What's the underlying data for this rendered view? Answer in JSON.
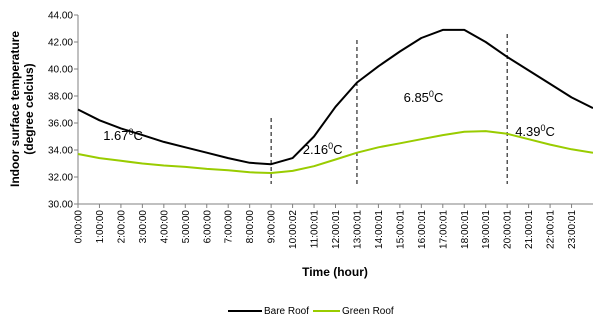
{
  "chart_data": {
    "type": "line",
    "xlabel": "Time (hour)",
    "ylabel_lines": [
      "Indoor surface temperature",
      "(degree celcius)"
    ],
    "ylim": [
      30.0,
      44.0
    ],
    "y_ticks": [
      "30.00",
      "32.00",
      "34.00",
      "36.00",
      "38.00",
      "40.00",
      "42.00",
      "44.00"
    ],
    "x_range_hours": [
      0,
      24
    ],
    "x_ticks": [
      {
        "hour": 0,
        "label": "0:00:00"
      },
      {
        "hour": 1,
        "label": "1:00:00"
      },
      {
        "hour": 2,
        "label": "2:00:00"
      },
      {
        "hour": 3,
        "label": "3:00:00"
      },
      {
        "hour": 4,
        "label": "4:00:00"
      },
      {
        "hour": 5,
        "label": "5:00:00"
      },
      {
        "hour": 6,
        "label": "6:00:00"
      },
      {
        "hour": 7,
        "label": "7:00:00"
      },
      {
        "hour": 8,
        "label": "8:00:00"
      },
      {
        "hour": 9,
        "label": "9:00:00"
      },
      {
        "hour": 10,
        "label": "10:00:02"
      },
      {
        "hour": 11,
        "label": "11:00:01"
      },
      {
        "hour": 12,
        "label": "12:00:01"
      },
      {
        "hour": 13,
        "label": "13:00:01"
      },
      {
        "hour": 14,
        "label": "14:00:01"
      },
      {
        "hour": 15,
        "label": "15:00:01"
      },
      {
        "hour": 16,
        "label": "16:00:01"
      },
      {
        "hour": 17,
        "label": "17:00:01"
      },
      {
        "hour": 18,
        "label": "18:00:01"
      },
      {
        "hour": 19,
        "label": "19:00:01"
      },
      {
        "hour": 20,
        "label": "20:00:01"
      },
      {
        "hour": 21,
        "label": "21:00:01"
      },
      {
        "hour": 22,
        "label": "22:00:01"
      },
      {
        "hour": 23,
        "label": "23:00:01"
      }
    ],
    "x_hours": [
      0,
      1,
      2,
      3,
      4,
      5,
      6,
      7,
      8,
      9,
      10,
      11,
      12,
      13,
      14,
      15,
      16,
      17,
      18,
      19,
      20,
      21,
      22,
      23,
      24
    ],
    "series": [
      {
        "name": "Bare Roof",
        "color": "#000000",
        "values": [
          37.0,
          36.2,
          35.6,
          35.1,
          34.6,
          34.2,
          33.8,
          33.4,
          33.05,
          32.95,
          33.4,
          35.0,
          37.2,
          39.0,
          40.2,
          41.3,
          42.3,
          42.9,
          42.9,
          42.0,
          40.9,
          39.9,
          38.9,
          37.9,
          37.1
        ]
      },
      {
        "name": "Green Roof",
        "color": "#99cc00",
        "values": [
          33.7,
          33.4,
          33.2,
          33.0,
          32.85,
          32.75,
          32.6,
          32.5,
          32.35,
          32.3,
          32.45,
          32.8,
          33.3,
          33.8,
          34.2,
          34.5,
          34.8,
          35.1,
          35.35,
          35.4,
          35.2,
          34.8,
          34.4,
          34.05,
          33.8
        ]
      }
    ],
    "dividers_hours": [
      9,
      13,
      20
    ],
    "annotations": [
      {
        "hour": 2.1,
        "y": 35.05,
        "base": "1.67",
        "sup": "0",
        "unit": "C"
      },
      {
        "hour": 11.4,
        "y": 34.0,
        "base": "2.16",
        "sup": "0",
        "unit": "C"
      },
      {
        "hour": 16.1,
        "y": 37.85,
        "base": "6.85",
        "sup": "0",
        "unit": "C"
      },
      {
        "hour": 21.3,
        "y": 35.35,
        "base": "4.39",
        "sup": "0",
        "unit": "C"
      }
    ],
    "legend_position": "bottom-center"
  }
}
